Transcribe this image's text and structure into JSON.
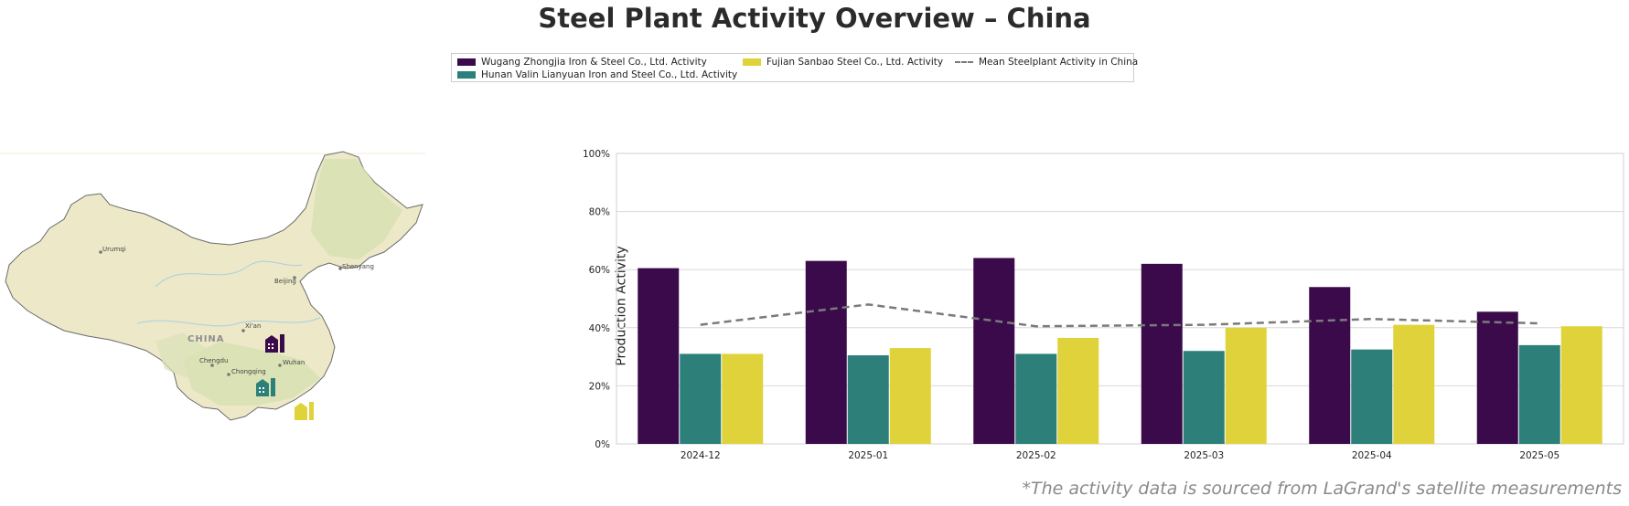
{
  "title": "Steel Plant Activity Overview – China",
  "footnote": "*The activity data is sourced from LaGrand's satellite measurements",
  "legend": [
    {
      "label": "Wugang Zhongjia Iron & Steel Co., Ltd. Activity",
      "color": "#3b0a4a",
      "kind": "bar"
    },
    {
      "label": "Hunan Valin Lianyuan Iron and Steel Co., Ltd. Activity",
      "color": "#2c8079",
      "kind": "bar"
    },
    {
      "label": "Fujian Sanbao Steel Co., Ltd. Activity",
      "color": "#e0d23a",
      "kind": "bar"
    },
    {
      "label": "Mean Steelplant Activity in China",
      "color": "#7a7a7a",
      "kind": "line"
    }
  ],
  "map": {
    "country_label": "CHINA",
    "cities": [
      "Urumqi",
      "Beijing",
      "Shenyang",
      "Xi'an",
      "Chengdu",
      "Chongqing",
      "Wuhan"
    ],
    "land_color": "#ece8c8",
    "forest_color": "#d7e0b0",
    "plant_icons": [
      "factory-icon-purple",
      "factory-icon-teal",
      "factory-icon-yellow"
    ]
  },
  "chart_data": {
    "type": "bar",
    "title": "",
    "xlabel": "",
    "ylabel": "Production Activity",
    "categories": [
      "2024-12",
      "2025-01",
      "2025-02",
      "2025-03",
      "2025-04",
      "2025-05"
    ],
    "ylim": [
      0,
      100
    ],
    "yticks": [
      "0%",
      "20%",
      "40%",
      "60%",
      "80%",
      "100%"
    ],
    "grid": true,
    "series": [
      {
        "name": "Wugang Zhongjia Iron & Steel Co., Ltd. Activity",
        "color": "#3b0a4a",
        "values": [
          60.5,
          63,
          64,
          62,
          54,
          45.5
        ]
      },
      {
        "name": "Hunan Valin Lianyuan Iron and Steel Co., Ltd. Activity",
        "color": "#2c8079",
        "values": [
          31,
          30.5,
          31,
          32,
          32.5,
          34
        ]
      },
      {
        "name": "Fujian Sanbao Steel Co., Ltd. Activity",
        "color": "#e0d23a",
        "values": [
          31,
          33,
          36.5,
          40,
          41,
          40.5
        ]
      },
      {
        "name": "Mean Steelplant Activity in China",
        "color": "#7a7a7a",
        "kind": "line",
        "values": [
          41,
          48,
          40.5,
          41,
          43,
          41.5
        ]
      }
    ]
  }
}
